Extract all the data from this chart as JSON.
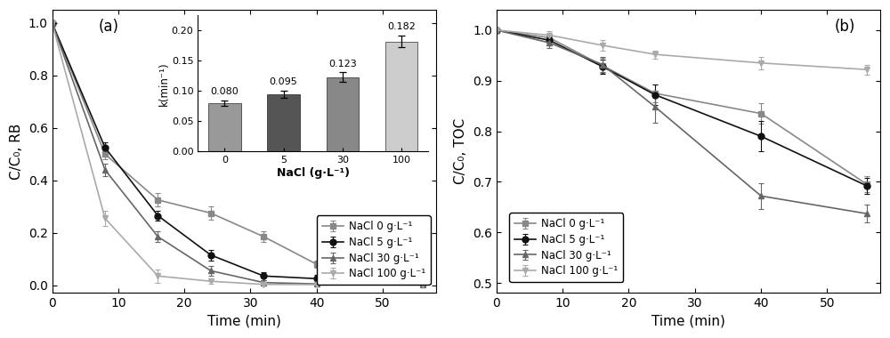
{
  "panel_a": {
    "title": "(a)",
    "xlabel": "Time (min)",
    "ylabel": "C/C₀, RB",
    "xlim": [
      0,
      58
    ],
    "ylim": [
      -0.03,
      1.05
    ],
    "xticks": [
      0,
      10,
      20,
      30,
      40,
      50
    ],
    "yticks": [
      0.0,
      0.2,
      0.4,
      0.6,
      0.8,
      1.0
    ],
    "series": [
      {
        "label": "NaCl 0 g·L⁻¹",
        "x": [
          0,
          8,
          16,
          24,
          32,
          40,
          56
        ],
        "y": [
          1.0,
          0.5,
          0.325,
          0.275,
          0.185,
          0.08,
          0.02
        ],
        "yerr": [
          0.0,
          0.02,
          0.025,
          0.025,
          0.02,
          0.015,
          0.01
        ],
        "color": "#888888",
        "marker": "s",
        "markersize": 5
      },
      {
        "label": "NaCl 5 g·L⁻¹",
        "x": [
          0,
          8,
          16,
          24,
          32,
          40,
          56
        ],
        "y": [
          1.0,
          0.525,
          0.265,
          0.115,
          0.035,
          0.025,
          0.01
        ],
        "yerr": [
          0.0,
          0.02,
          0.02,
          0.02,
          0.015,
          0.015,
          0.01
        ],
        "color": "#111111",
        "marker": "o",
        "markersize": 5
      },
      {
        "label": "NaCl 30 g·L⁻¹",
        "x": [
          0,
          8,
          16,
          24,
          32,
          40,
          56
        ],
        "y": [
          1.0,
          0.44,
          0.185,
          0.055,
          0.01,
          0.005,
          0.003
        ],
        "yerr": [
          0.0,
          0.025,
          0.02,
          0.02,
          0.01,
          0.005,
          0.003
        ],
        "color": "#666666",
        "marker": "^",
        "markersize": 5
      },
      {
        "label": "NaCl 100 g·L⁻¹",
        "x": [
          0,
          8,
          16,
          24,
          32,
          40,
          56
        ],
        "y": [
          1.0,
          0.255,
          0.035,
          0.015,
          0.003,
          0.002,
          0.001
        ],
        "yerr": [
          0.0,
          0.03,
          0.025,
          0.01,
          0.003,
          0.002,
          0.001
        ],
        "color": "#aaaaaa",
        "marker": "v",
        "markersize": 5
      }
    ],
    "inset": {
      "bar_labels": [
        "0",
        "5",
        "30",
        "100"
      ],
      "bar_values": [
        0.08,
        0.095,
        0.123,
        0.182
      ],
      "bar_yerr": [
        0.005,
        0.006,
        0.008,
        0.01
      ],
      "bar_colors": [
        "#999999",
        "#555555",
        "#888888",
        "#cccccc"
      ],
      "xlabel": "NaCl (g·L⁻¹)",
      "ylabel": "k(min⁻¹)",
      "ylim": [
        0,
        0.225
      ],
      "yticks": [
        0.0,
        0.05,
        0.1,
        0.15,
        0.2
      ],
      "value_labels": [
        "0.080",
        "0.095",
        "0.123",
        "0.182"
      ]
    }
  },
  "panel_b": {
    "title": "(b)",
    "xlabel": "Time (min)",
    "ylabel": "C/C₀, TOC",
    "xlim": [
      0,
      58
    ],
    "ylim": [
      0.48,
      1.04
    ],
    "xticks": [
      0,
      10,
      20,
      30,
      40,
      50
    ],
    "yticks": [
      0.5,
      0.6,
      0.7,
      0.8,
      0.9,
      1.0
    ],
    "series": [
      {
        "label": "NaCl 0 g·L⁻¹",
        "x": [
          0,
          8,
          16,
          24,
          40,
          56
        ],
        "y": [
          1.0,
          0.985,
          0.93,
          0.875,
          0.835,
          0.695
        ],
        "yerr": [
          0.0,
          0.01,
          0.015,
          0.018,
          0.02,
          0.016
        ],
        "color": "#888888",
        "marker": "s",
        "markersize": 5
      },
      {
        "label": "NaCl 5 g·L⁻¹",
        "x": [
          0,
          8,
          16,
          24,
          40,
          56
        ],
        "y": [
          1.0,
          0.98,
          0.928,
          0.872,
          0.79,
          0.692
        ],
        "yerr": [
          0.0,
          0.01,
          0.014,
          0.02,
          0.03,
          0.016
        ],
        "color": "#111111",
        "marker": "o",
        "markersize": 5
      },
      {
        "label": "NaCl 30 g·L⁻¹",
        "x": [
          0,
          8,
          16,
          24,
          40,
          56
        ],
        "y": [
          1.0,
          0.975,
          0.932,
          0.848,
          0.672,
          0.637
        ],
        "yerr": [
          0.0,
          0.01,
          0.015,
          0.032,
          0.025,
          0.018
        ],
        "color": "#666666",
        "marker": "^",
        "markersize": 5
      },
      {
        "label": "NaCl 100 g·L⁻¹",
        "x": [
          0,
          8,
          16,
          24,
          40,
          56
        ],
        "y": [
          1.0,
          0.99,
          0.97,
          0.952,
          0.935,
          0.922
        ],
        "yerr": [
          0.0,
          0.008,
          0.01,
          0.008,
          0.012,
          0.01
        ],
        "color": "#aaaaaa",
        "marker": "v",
        "markersize": 5
      }
    ]
  }
}
